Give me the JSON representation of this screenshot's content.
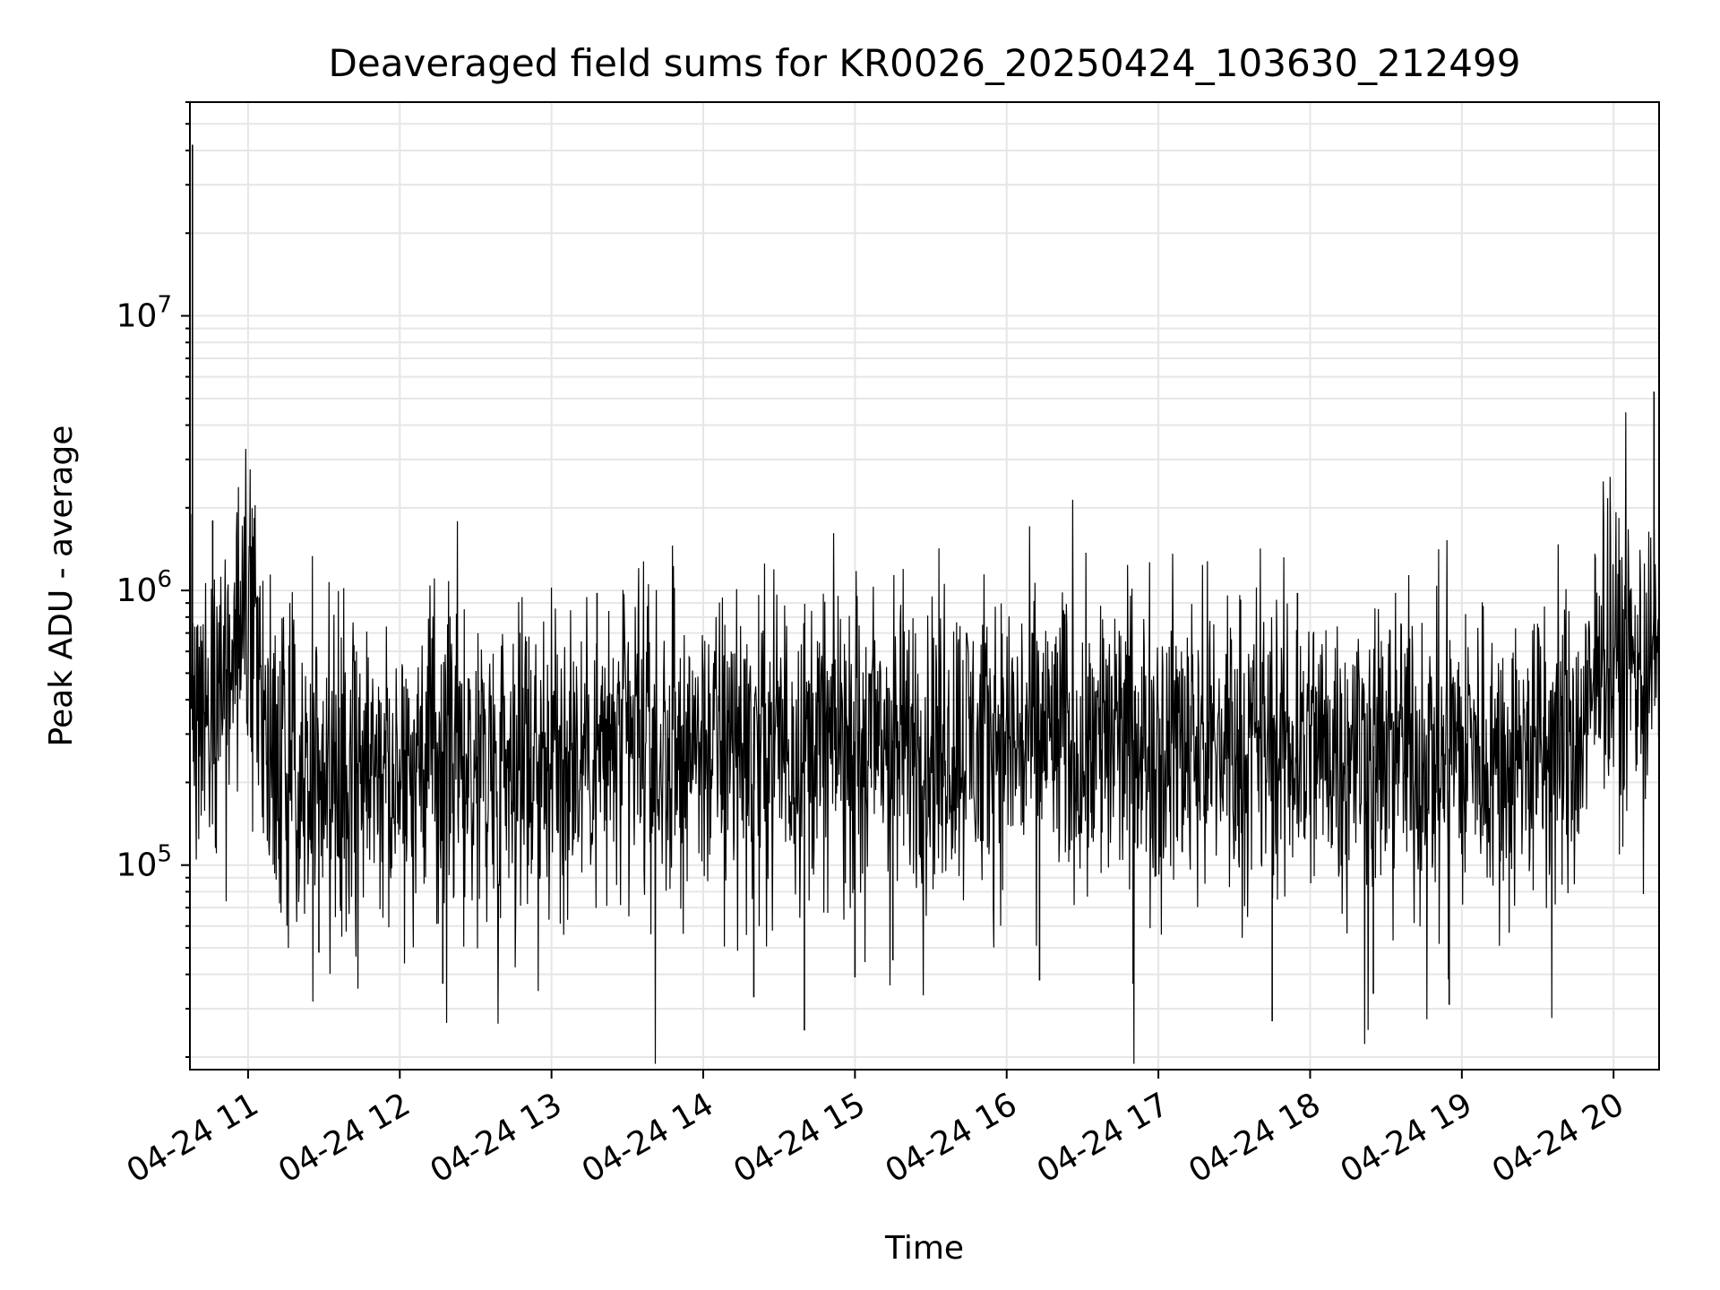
{
  "chart_data": {
    "type": "line",
    "title": "Deaveraged field sums for KR0026_20250424_103630_212499",
    "xlabel": "Time",
    "ylabel": "Peak ADU - average",
    "x_scale": "time",
    "y_scale": "log",
    "xlim": [
      "04-24 10:37",
      "04-24 20:18"
    ],
    "ylim": [
      18000,
      60000000
    ],
    "x_ticks": [
      "04-24 11",
      "04-24 12",
      "04-24 13",
      "04-24 14",
      "04-24 15",
      "04-24 16",
      "04-24 17",
      "04-24 18",
      "04-24 19",
      "04-24 20"
    ],
    "y_ticks": [
      {
        "value": 100000,
        "base": "10",
        "exp": "5"
      },
      {
        "value": 1000000,
        "base": "10",
        "exp": "6"
      },
      {
        "value": 10000000,
        "base": "10",
        "exp": "7"
      }
    ],
    "grid": true,
    "line_color": "#000000",
    "series": [
      {
        "x": [
          "04-24 10:37",
          "04-24 10:40",
          "04-24 10:45",
          "04-24 10:50",
          "04-24 10:55",
          "04-24 11:00",
          "04-24 11:05",
          "04-24 11:10",
          "04-24 11:20",
          "04-24 11:30",
          "04-24 11:45",
          "04-24 12:00",
          "04-24 12:20",
          "04-24 12:40",
          "04-24 13:00",
          "04-24 13:20",
          "04-24 13:40",
          "04-24 14:00",
          "04-24 14:20",
          "04-24 14:40",
          "04-24 15:00",
          "04-24 15:20",
          "04-24 15:40",
          "04-24 16:00",
          "04-24 16:20",
          "04-24 16:40",
          "04-24 17:00",
          "04-24 17:20",
          "04-24 17:40",
          "04-24 18:00",
          "04-24 18:20",
          "04-24 18:40",
          "04-24 19:00",
          "04-24 19:20",
          "04-24 19:40",
          "04-24 19:50",
          "04-24 19:55",
          "04-24 20:00",
          "04-24 20:05",
          "04-24 20:10",
          "04-24 20:15",
          "04-24 20:18"
        ],
        "values": [
          500000,
          420000,
          480000,
          520000,
          600000,
          900000,
          420000,
          260000,
          240000,
          230000,
          240000,
          250000,
          255000,
          258000,
          260000,
          262000,
          265000,
          270000,
          275000,
          280000,
          282000,
          285000,
          285000,
          285000,
          285000,
          285000,
          285000,
          282000,
          278000,
          275000,
          272000,
          268000,
          265000,
          260000,
          262000,
          300000,
          700000,
          600000,
          550000,
          520000,
          540000,
          600000
        ]
      }
    ],
    "spikes": [
      {
        "x": "04-24 10:38",
        "value": 42000000
      },
      {
        "x": "04-24 10:46",
        "value": 1800000
      },
      {
        "x": "04-24 11:28",
        "value": 48000
      },
      {
        "x": "04-24 12:17",
        "value": 37000
      },
      {
        "x": "04-24 13:18",
        "value": 980000
      },
      {
        "x": "04-24 14:20",
        "value": 33000
      },
      {
        "x": "04-24 14:40",
        "value": 25000
      },
      {
        "x": "04-24 15:00",
        "value": 39000
      },
      {
        "x": "04-24 15:15",
        "value": 45000
      },
      {
        "x": "04-24 16:13",
        "value": 38000
      },
      {
        "x": "04-24 16:50",
        "value": 37000
      },
      {
        "x": "04-24 17:45",
        "value": 27000
      },
      {
        "x": "04-24 17:55",
        "value": 980000
      },
      {
        "x": "04-24 18:25",
        "value": 34000
      },
      {
        "x": "04-24 18:55",
        "value": 31000
      },
      {
        "x": "04-24 20:16",
        "value": 5300000
      }
    ]
  }
}
